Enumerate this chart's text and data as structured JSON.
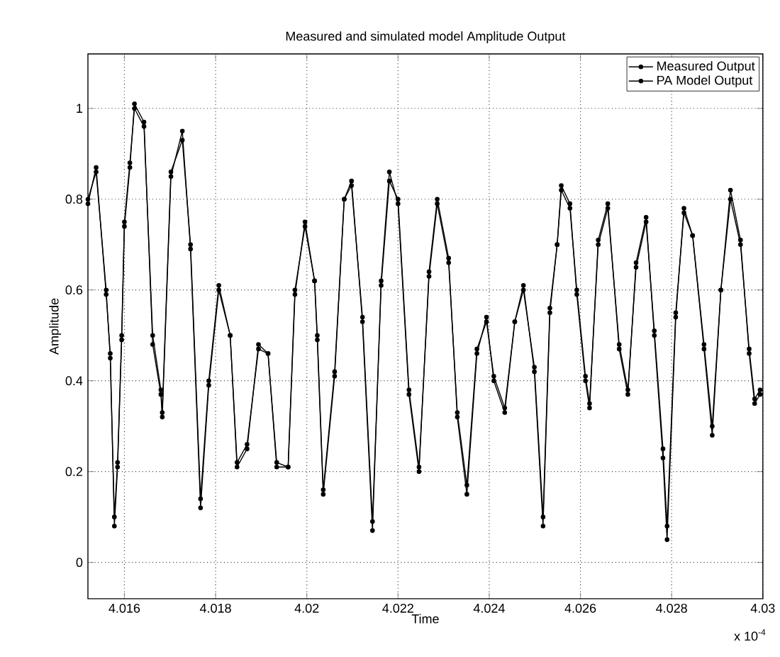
{
  "chart_data": {
    "type": "line",
    "title": "Measured and simulated model Amplitude Output",
    "xlabel": "Time",
    "ylabel": "Amplitude",
    "annotations": [
      "x 10$^{-4}$"
    ],
    "x": [
      4.0152,
      4.01538,
      4.0156,
      4.01569,
      4.01578,
      4.01585,
      4.01594,
      4.016,
      4.01612,
      4.01622,
      4.01643,
      4.01662,
      4.0168,
      4.01683,
      4.01702,
      4.01727,
      4.01745,
      4.01767,
      4.01785,
      4.01807,
      4.01832,
      4.01847,
      4.01869,
      4.01894,
      4.01915,
      4.01934,
      4.01959,
      4.01974,
      4.01996,
      4.02017,
      4.02023,
      4.02036,
      4.02061,
      4.02082,
      4.02098,
      4.02122,
      4.02144,
      4.02163,
      4.02181,
      4.022,
      4.02224,
      4.02246,
      4.02268,
      4.02286,
      4.02311,
      4.0233,
      4.02351,
      4.02373,
      4.02394,
      4.0241,
      4.02434,
      4.02456,
      4.02475,
      4.02499,
      4.02518,
      4.02533,
      4.02549,
      4.02558,
      4.02577,
      4.02592,
      4.02611,
      4.0262,
      4.02639,
      4.0266,
      4.02685,
      4.02704,
      4.02722,
      4.02744,
      4.02762,
      4.02781,
      4.0279,
      4.02809,
      4.02827,
      4.02846,
      4.02871,
      4.02889,
      4.02908,
      4.02929,
      4.02951,
      4.0297,
      4.02982,
      4.02994
    ],
    "series": [
      {
        "name": "Measured Output",
        "color": "#000000",
        "values": [
          0.79,
          0.87,
          0.59,
          0.46,
          0.08,
          0.21,
          0.49,
          0.74,
          0.87,
          1.01,
          0.97,
          0.48,
          0.37,
          0.32,
          0.85,
          0.95,
          0.69,
          0.12,
          0.39,
          0.6,
          0.5,
          0.21,
          0.25,
          0.48,
          0.46,
          0.21,
          0.21,
          0.59,
          0.75,
          0.62,
          0.49,
          0.15,
          0.41,
          0.8,
          0.84,
          0.53,
          0.07,
          0.62,
          0.86,
          0.79,
          0.37,
          0.2,
          0.64,
          0.8,
          0.67,
          0.32,
          0.15,
          0.46,
          0.54,
          0.4,
          0.33,
          0.53,
          0.61,
          0.42,
          0.08,
          0.55,
          0.7,
          0.83,
          0.79,
          0.59,
          0.4,
          0.34,
          0.71,
          0.79,
          0.47,
          0.37,
          0.66,
          0.76,
          0.5,
          0.23,
          0.05,
          0.54,
          0.78,
          0.72,
          0.47,
          0.28,
          0.6,
          0.82,
          0.71,
          0.46,
          0.35,
          0.37
        ]
      },
      {
        "name": "PA Model Output",
        "color": "#000000",
        "values": [
          0.8,
          0.86,
          0.6,
          0.45,
          0.1,
          0.22,
          0.5,
          0.75,
          0.88,
          1.0,
          0.96,
          0.5,
          0.38,
          0.33,
          0.86,
          0.93,
          0.7,
          0.14,
          0.4,
          0.61,
          0.5,
          0.22,
          0.26,
          0.47,
          0.46,
          0.22,
          0.21,
          0.6,
          0.74,
          0.62,
          0.5,
          0.16,
          0.42,
          0.8,
          0.83,
          0.54,
          0.09,
          0.61,
          0.84,
          0.8,
          0.38,
          0.21,
          0.63,
          0.79,
          0.66,
          0.33,
          0.17,
          0.47,
          0.53,
          0.41,
          0.34,
          0.53,
          0.6,
          0.43,
          0.1,
          0.56,
          0.7,
          0.82,
          0.78,
          0.6,
          0.41,
          0.35,
          0.7,
          0.78,
          0.48,
          0.38,
          0.65,
          0.75,
          0.51,
          0.25,
          0.08,
          0.55,
          0.77,
          0.72,
          0.48,
          0.3,
          0.6,
          0.8,
          0.7,
          0.47,
          0.36,
          0.38
        ]
      }
    ],
    "xlim": [
      4.0152,
      4.03
    ],
    "ylim": [
      -0.08,
      1.12
    ],
    "xticks": [
      4.016,
      4.018,
      4.02,
      4.022,
      4.024,
      4.026,
      4.028,
      4.03
    ],
    "yticks": [
      0,
      0.2,
      0.4,
      0.6,
      0.8,
      1
    ],
    "grid": true,
    "legend": "top right",
    "marker": "circle",
    "line_style": "solid"
  }
}
